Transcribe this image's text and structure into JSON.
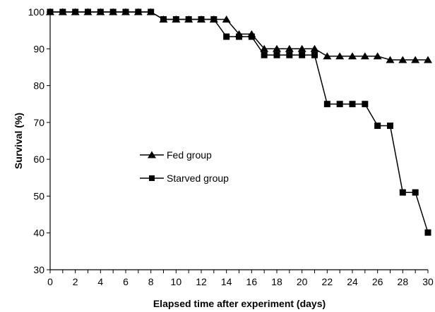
{
  "chart_data": {
    "type": "line",
    "title": "",
    "xlabel": "Elapsed time after experiment (days)",
    "ylabel": "Survival (%)",
    "xlim": [
      0,
      30
    ],
    "ylim": [
      30,
      100
    ],
    "x_ticks": [
      "0",
      "2",
      "4",
      "6",
      "8",
      "10",
      "12",
      "14",
      "16",
      "18",
      "20",
      "22",
      "24",
      "26",
      "28",
      "30"
    ],
    "y_ticks": [
      "30",
      "40",
      "50",
      "60",
      "70",
      "80",
      "90",
      "100"
    ],
    "grid": false,
    "legend_position": "center-left",
    "x": [
      0,
      1,
      2,
      3,
      4,
      5,
      6,
      7,
      8,
      9,
      10,
      11,
      12,
      13,
      14,
      15,
      16,
      17,
      18,
      19,
      20,
      21,
      22,
      23,
      24,
      25,
      26,
      27,
      28,
      29,
      30
    ],
    "series": [
      {
        "name": "Fed group",
        "marker": "triangle",
        "color": "#000000",
        "values": [
          100,
          100,
          100,
          100,
          100,
          100,
          100,
          100,
          100,
          98,
          98,
          98,
          98,
          98,
          98,
          94,
          94,
          90,
          90,
          90,
          90,
          90,
          88,
          88,
          88,
          88,
          88,
          87,
          87,
          87,
          87
        ]
      },
      {
        "name": "Starved group",
        "marker": "square",
        "color": "#000000",
        "values": [
          100,
          100,
          100,
          100,
          100,
          100,
          100,
          100,
          100,
          98,
          98,
          98,
          98,
          98,
          93.3,
          93.3,
          93.3,
          88.3,
          88.3,
          88.3,
          88.3,
          88.3,
          75,
          75,
          75,
          75,
          69.1,
          69.1,
          51,
          51,
          40.1
        ]
      }
    ]
  }
}
